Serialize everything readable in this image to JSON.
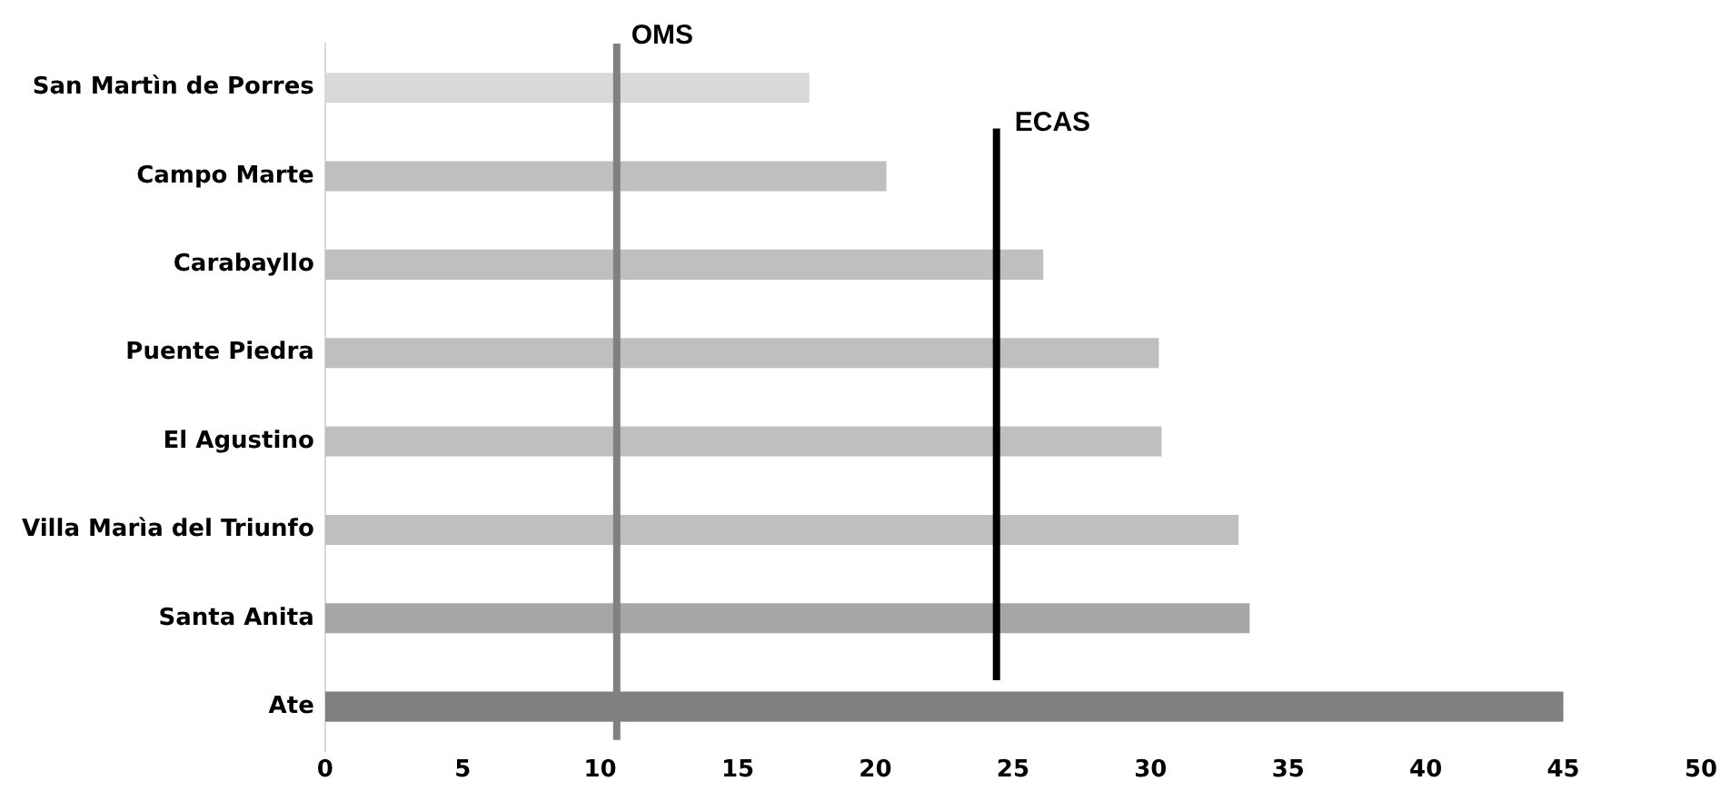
{
  "chart_data": {
    "type": "bar",
    "orientation": "horizontal",
    "categories": [
      "San Martìn de Porres",
      "Campo Marte",
      "Carabayllo",
      "Puente Piedra",
      "El Agustino",
      "Villa Marìa del Triunfo",
      "Santa Anita",
      "Ate"
    ],
    "values": [
      17.6,
      20.4,
      26.1,
      30.3,
      30.4,
      33.2,
      33.6,
      45.0
    ],
    "colors": [
      "#d9d9d9",
      "#bfbfbf",
      "#bfbfbf",
      "#bfbfbf",
      "#bfbfbf",
      "#bfbfbf",
      "#a6a6a6",
      "#808080"
    ],
    "xlim": [
      0,
      50
    ],
    "xticks": [
      0,
      5,
      10,
      15,
      20,
      25,
      30,
      35,
      40,
      45,
      50
    ],
    "ref_lines": [
      {
        "axis": "x",
        "value": 10.6,
        "label": "OMS",
        "color": "#808080"
      },
      {
        "axis": "x",
        "value": 24.4,
        "label": "ECAS",
        "color": "#000000"
      }
    ],
    "grid": false,
    "legend": false
  }
}
